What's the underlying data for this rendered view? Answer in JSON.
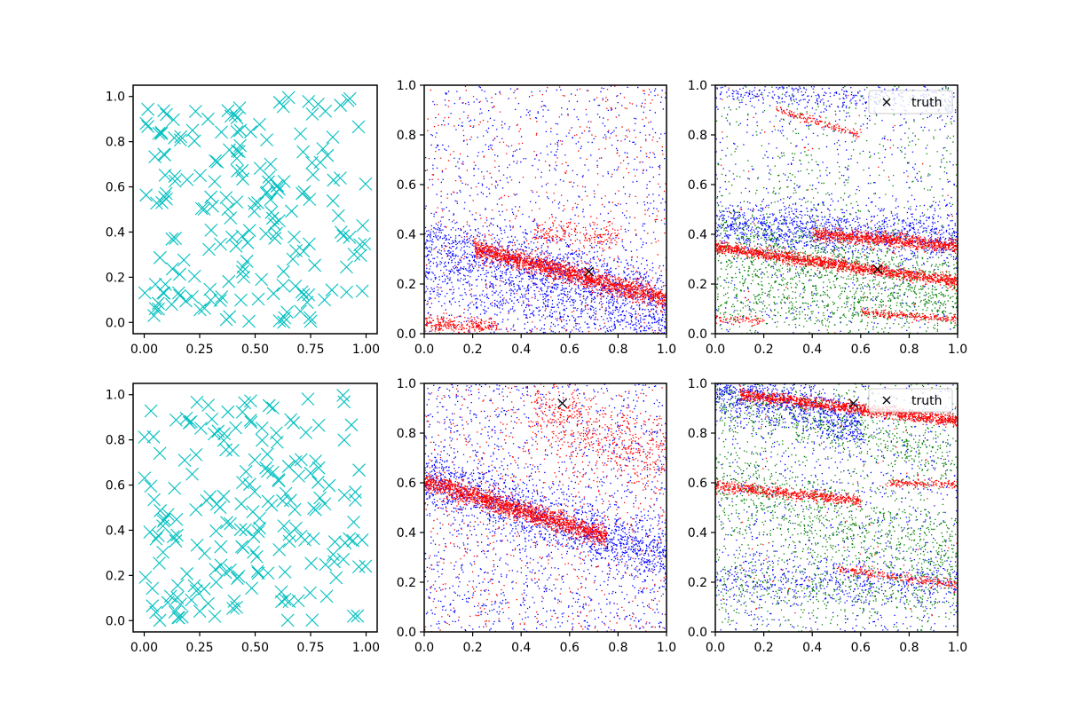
{
  "chart_data": [
    {
      "type": "scatter",
      "panel": "top-left",
      "xlim": [
        -0.05,
        1.05
      ],
      "ylim": [
        -0.05,
        1.05
      ],
      "xticks": [
        "0.00",
        "0.25",
        "0.50",
        "0.75",
        "1.00"
      ],
      "yticks": [
        "0.0",
        "0.2",
        "0.4",
        "0.6",
        "0.8",
        "1.0"
      ],
      "marker": "x",
      "color": "#00bfbf",
      "sample_count": 190,
      "distribution": "uniform random points over [0,1]x[0,1]",
      "seed": 11
    },
    {
      "type": "scatter",
      "panel": "top-middle",
      "xlim": [
        0,
        1
      ],
      "ylim": [
        0,
        1
      ],
      "xticks": [
        "0.0",
        "0.2",
        "0.4",
        "0.6",
        "0.8",
        "1.0"
      ],
      "yticks": [
        "0.0",
        "0.2",
        "0.4",
        "0.6",
        "0.8",
        "1.0"
      ],
      "seed": 21,
      "truth": {
        "x": 0.68,
        "y": 0.25,
        "color": "#000000"
      },
      "series": [
        {
          "color": "#0000ff",
          "bands": [
            {
              "y0": 0.37,
              "slope": -0.24,
              "width": 0.07,
              "n": 1500
            },
            {
              "y0": 0.18,
              "slope": -0.18,
              "width": 0.05,
              "n": 500
            }
          ],
          "noise": 900
        },
        {
          "color": "#ff0000",
          "bands": [
            {
              "y0": 0.4,
              "slope": -0.26,
              "width": 0.02,
              "n": 1700,
              "x0": 0.2
            },
            {
              "y0": 0.04,
              "slope": -0.02,
              "width": 0.015,
              "n": 250,
              "x1": 0.3
            },
            {
              "y0": 0.43,
              "slope": -0.05,
              "width": 0.03,
              "n": 200,
              "x0": 0.45,
              "x1": 0.8
            }
          ],
          "noise": 500
        }
      ]
    },
    {
      "type": "scatter",
      "panel": "top-right",
      "xlim": [
        0,
        1
      ],
      "ylim": [
        0,
        1
      ],
      "xticks": [
        "0.0",
        "0.2",
        "0.4",
        "0.6",
        "0.8",
        "1.0"
      ],
      "yticks": [
        "0.0",
        "0.2",
        "0.4",
        "0.6",
        "0.8",
        "1.0"
      ],
      "seed": 31,
      "legend": {
        "label": "truth",
        "position": "top-right"
      },
      "truth": {
        "x": 0.67,
        "y": 0.26,
        "color": "#000000"
      },
      "series": [
        {
          "color": "#0000ff",
          "bands": [
            {
              "y0": 0.44,
              "slope": -0.05,
              "width": 0.05,
              "n": 1100
            },
            {
              "y0": 0.99,
              "slope": -0.06,
              "width": 0.03,
              "n": 400
            }
          ],
          "noise": 700
        },
        {
          "color": "#008000",
          "bands": [
            {
              "y0": 0.36,
              "slope": -0.18,
              "width": 0.08,
              "n": 900
            },
            {
              "y0": 0.12,
              "slope": -0.02,
              "width": 0.06,
              "n": 400
            }
          ],
          "noise": 700
        },
        {
          "color": "#ff0000",
          "bands": [
            {
              "y0": 0.35,
              "slope": -0.14,
              "width": 0.012,
              "n": 1500
            },
            {
              "y0": 0.44,
              "slope": -0.085,
              "width": 0.014,
              "n": 900,
              "x0": 0.4
            },
            {
              "y0": 0.98,
              "slope": -0.3,
              "width": 0.01,
              "n": 150,
              "x0": 0.25,
              "x1": 0.6
            },
            {
              "y0": 0.13,
              "slope": -0.07,
              "width": 0.008,
              "n": 220,
              "x0": 0.6
            },
            {
              "y0": 0.06,
              "slope": -0.02,
              "width": 0.01,
              "n": 80,
              "x1": 0.2
            }
          ],
          "noise": 60
        }
      ]
    },
    {
      "type": "scatter",
      "panel": "bottom-left",
      "xlim": [
        -0.05,
        1.05
      ],
      "ylim": [
        -0.05,
        1.05
      ],
      "xticks": [
        "0.00",
        "0.25",
        "0.50",
        "0.75",
        "1.00"
      ],
      "yticks": [
        "0.0",
        "0.2",
        "0.4",
        "0.6",
        "0.8",
        "1.0"
      ],
      "marker": "x",
      "color": "#00bfbf",
      "sample_count": 190,
      "distribution": "uniform random points over [0,1]x[0,1]",
      "seed": 12
    },
    {
      "type": "scatter",
      "panel": "bottom-middle",
      "xlim": [
        0,
        1
      ],
      "ylim": [
        0,
        1
      ],
      "xticks": [
        "0.0",
        "0.2",
        "0.4",
        "0.6",
        "0.8",
        "1.0"
      ],
      "yticks": [
        "0.0",
        "0.2",
        "0.4",
        "0.6",
        "0.8",
        "1.0"
      ],
      "seed": 41,
      "truth": {
        "x": 0.57,
        "y": 0.92,
        "color": "#000000"
      },
      "series": [
        {
          "color": "#0000ff",
          "bands": [
            {
              "y0": 0.62,
              "slope": -0.32,
              "width": 0.06,
              "n": 1400
            }
          ],
          "noise": 1500
        },
        {
          "color": "#ff0000",
          "bands": [
            {
              "y0": 0.61,
              "slope": -0.3,
              "width": 0.02,
              "n": 1700,
              "x1": 0.75
            },
            {
              "y0": 1.05,
              "slope": -0.35,
              "width": 0.07,
              "n": 500,
              "x0": 0.45
            }
          ],
          "noise": 700
        }
      ]
    },
    {
      "type": "scatter",
      "panel": "bottom-right",
      "xlim": [
        0,
        1
      ],
      "ylim": [
        0,
        1
      ],
      "xticks": [
        "0.0",
        "0.2",
        "0.4",
        "0.6",
        "0.8",
        "1.0"
      ],
      "yticks": [
        "0.0",
        "0.2",
        "0.4",
        "0.6",
        "0.8",
        "1.0"
      ],
      "seed": 51,
      "legend": {
        "label": "truth",
        "position": "top-right"
      },
      "truth": {
        "x": 0.57,
        "y": 0.92,
        "color": "#000000"
      },
      "series": [
        {
          "color": "#0000ff",
          "bands": [
            {
              "y0": 0.99,
              "slope": -0.25,
              "width": 0.05,
              "n": 900,
              "x1": 0.6
            },
            {
              "y0": 0.21,
              "slope": -0.03,
              "width": 0.05,
              "n": 500
            }
          ],
          "noise": 900
        },
        {
          "color": "#008000",
          "bands": [
            {
              "y0": 0.58,
              "slope": -0.25,
              "width": 0.08,
              "n": 700
            },
            {
              "y0": 0.95,
              "slope": -0.25,
              "width": 0.06,
              "n": 500
            },
            {
              "y0": 0.19,
              "slope": -0.02,
              "width": 0.06,
              "n": 300
            }
          ],
          "noise": 800
        },
        {
          "color": "#ff0000",
          "bands": [
            {
              "y0": 0.97,
              "slope": -0.12,
              "width": 0.012,
              "n": 1300,
              "x0": 0.1
            },
            {
              "y0": 0.59,
              "slope": -0.1,
              "width": 0.012,
              "n": 600,
              "x1": 0.6
            },
            {
              "y0": 0.62,
              "slope": -0.025,
              "width": 0.008,
              "n": 150,
              "x0": 0.7
            },
            {
              "y0": 0.32,
              "slope": -0.13,
              "width": 0.01,
              "n": 250,
              "x0": 0.5
            }
          ],
          "noise": 60
        }
      ]
    }
  ]
}
